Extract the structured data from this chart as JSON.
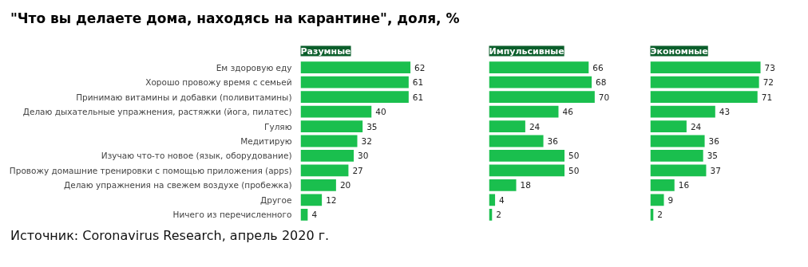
{
  "chart_data": [
    {
      "type": "bar",
      "orientation": "horizontal",
      "title": "\"Что вы делаете дома, находясь на карантине\", доля, %",
      "categories": [
        "Ем здоровую еду",
        "Хорошо провожу время с семьей",
        "Принимаю витамины и добавки (поливитамины)",
        "Делаю дыхательные упражнения, растяжки (йога, пилатес)",
        "Гуляю",
        "Медитирую",
        "Изучаю что-то новое (язык, оборудование)",
        "Провожу домашние тренировки с помощью приложения (apps)",
        "Делаю упражнения на свежем воздухе (пробежка)",
        "Другое",
        "Ничего из перечисленного"
      ],
      "series": [
        {
          "name": "Разумные",
          "color": "#1abf4e",
          "values": [
            62,
            61,
            61,
            40,
            35,
            32,
            30,
            27,
            20,
            12,
            4
          ]
        }
      ],
      "data_labels": true,
      "annotations": [
        "Источник: Coronavirus Research, апрель 2020 г."
      ]
    },
    {
      "type": "bar",
      "orientation": "horizontal",
      "categories": [
        null,
        null,
        null,
        null,
        null,
        null,
        null,
        null,
        null,
        null,
        null
      ],
      "series": [
        {
          "name": "Импульсивные",
          "color": "#1abf4e",
          "values": [
            66,
            68,
            70,
            46,
            24,
            36,
            50,
            50,
            18,
            4,
            2
          ]
        }
      ],
      "data_labels": true
    },
    {
      "type": "bar",
      "orientation": "horizontal",
      "categories": [
        null,
        null,
        null,
        null,
        null,
        null,
        null,
        null,
        null,
        null,
        null
      ],
      "series": [
        {
          "name": "Экономные",
          "color": "#1abf4e",
          "values": [
            73,
            72,
            71,
            43,
            24,
            36,
            35,
            37,
            16,
            9,
            2
          ]
        }
      ],
      "data_labels": true
    }
  ]
}
